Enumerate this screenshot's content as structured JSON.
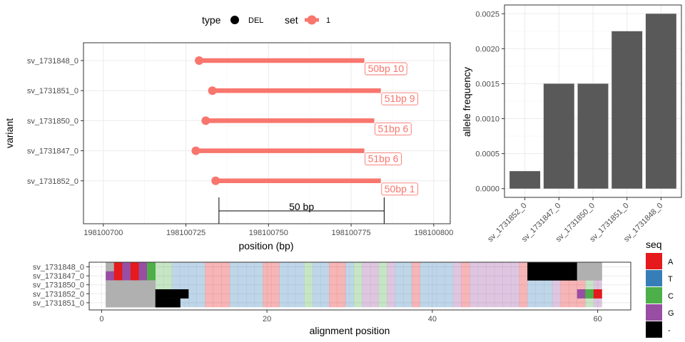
{
  "chart_data": [
    {
      "type": "dumbbell",
      "xlabel": "position (bp)",
      "ylabel": "variant",
      "xlim": [
        198100694,
        198100805
      ],
      "xticks": [
        198100700,
        198100725,
        198100750,
        198100775,
        198100800
      ],
      "xtick_labels": [
        "198100700",
        "198100725",
        "198100750",
        "198100775",
        "198100800"
      ],
      "categories": [
        "sv_1731848_0",
        "sv_1731851_0",
        "sv_1731850_0",
        "sv_1731847_0",
        "sv_1731852_0"
      ],
      "segments": [
        {
          "variant": "sv_1731848_0",
          "start": 198100729,
          "end": 198100779,
          "label": "50bp 10"
        },
        {
          "variant": "sv_1731851_0",
          "start": 198100733,
          "end": 198100784,
          "label": "51bp 9"
        },
        {
          "variant": "sv_1731850_0",
          "start": 198100731,
          "end": 198100782,
          "label": "51bp 6"
        },
        {
          "variant": "sv_1731847_0",
          "start": 198100728,
          "end": 198100779,
          "label": "51bp 6"
        },
        {
          "variant": "sv_1731852_0",
          "start": 198100734,
          "end": 198100784,
          "label": "50bp 1"
        }
      ],
      "scale_bar": {
        "start": 198100735,
        "end": 198100785,
        "label": "50 bp"
      },
      "legend": {
        "position": "top",
        "type_title": "type",
        "type_value": "DEL",
        "set_title": "set",
        "set_value": "1"
      },
      "colors": {
        "segment": "#f8766d",
        "text": "#000000"
      },
      "grid": true
    },
    {
      "type": "bar",
      "ylabel": "allele frequency",
      "categories": [
        "sv_1731852_0",
        "sv_1731847_0",
        "sv_1731850_0",
        "sv_1731851_0",
        "sv_1731848_0"
      ],
      "values": [
        0.00025,
        0.0015,
        0.0015,
        0.00225,
        0.0025
      ],
      "ylim": [
        -0.000125,
        0.002625
      ],
      "yticks": [
        0,
        0.0005,
        0.001,
        0.0015,
        0.002,
        0.0025
      ],
      "ytick_labels": [
        "0.0000",
        "0.0005",
        "0.0010",
        "0.0015",
        "0.0020",
        "0.0025"
      ],
      "colors": {
        "bar": "#595959"
      },
      "grid": true
    },
    {
      "type": "heatmap",
      "xlabel": "alignment position",
      "xlim": [
        -1.5,
        64
      ],
      "xticks": [
        0,
        20,
        40,
        60
      ],
      "xtick_labels": [
        "0",
        "20",
        "40",
        "60"
      ],
      "rows": [
        "sv_1731848_0",
        "sv_1731847_0",
        "sv_1731850_0",
        "sv_1731852_0",
        "sv_1731851_0"
      ],
      "legend": {
        "title": "seq",
        "items": [
          {
            "label": "A",
            "color": "#e41a1c"
          },
          {
            "label": "T",
            "color": "#377eb8"
          },
          {
            "label": "C",
            "color": "#4daf4a"
          },
          {
            "label": "G",
            "color": "#984ea3"
          },
          {
            "label": "-",
            "color": "#000000"
          }
        ]
      },
      "background_pattern": [
        "A",
        "G",
        "A",
        "G",
        "A",
        "G",
        "C",
        "C",
        "C",
        "T",
        "T",
        "T",
        "T",
        "A",
        "A",
        "A",
        "T",
        "T",
        "T",
        "T",
        "A",
        "A",
        "T",
        "T",
        "T",
        "C",
        "T",
        "T",
        "A",
        "A",
        "T",
        "C",
        "G",
        "G",
        "C",
        "G",
        "T",
        "T",
        "A",
        "T",
        "T",
        "T",
        "T",
        "G",
        "A",
        "G",
        "G",
        "G",
        "G",
        "G",
        "G",
        "A",
        "T",
        "T",
        "T",
        "G",
        "A",
        "A",
        "A",
        "C",
        "G"
      ],
      "fade_opacity": 0.32,
      "cells": [
        {
          "row": 0,
          "from": 1,
          "to": 1,
          "seq": "gap-fill"
        },
        {
          "row": 0,
          "from": 2,
          "to": 6,
          "seq": "full"
        },
        {
          "row": 0,
          "from": 52,
          "to": 57,
          "seq": "-"
        },
        {
          "row": 0,
          "from": 58,
          "to": 60,
          "seq": "gap-fill"
        },
        {
          "row": 1,
          "from": 1,
          "to": 1,
          "seq": "G"
        },
        {
          "row": 1,
          "from": 2,
          "to": 6,
          "seq": "full"
        },
        {
          "row": 1,
          "from": 52,
          "to": 57,
          "seq": "-"
        },
        {
          "row": 1,
          "from": 58,
          "to": 60,
          "seq": "gap-fill"
        },
        {
          "row": 2,
          "from": 1,
          "to": 6,
          "seq": "gap-fill"
        },
        {
          "row": 3,
          "from": 1,
          "to": 6,
          "seq": "gap-fill"
        },
        {
          "row": 3,
          "from": 7,
          "to": 10,
          "seq": "-"
        },
        {
          "row": 3,
          "from": 58,
          "to": 58,
          "seq": "G"
        },
        {
          "row": 3,
          "from": 59,
          "to": 59,
          "seq": "C"
        },
        {
          "row": 3,
          "from": 60,
          "to": 60,
          "seq": "A"
        },
        {
          "row": 4,
          "from": 1,
          "to": 6,
          "seq": "gap-fill"
        },
        {
          "row": 4,
          "from": 7,
          "to": 9,
          "seq": "-"
        }
      ],
      "colors": {
        "gap_fill": "#b0b0b0"
      }
    }
  ]
}
